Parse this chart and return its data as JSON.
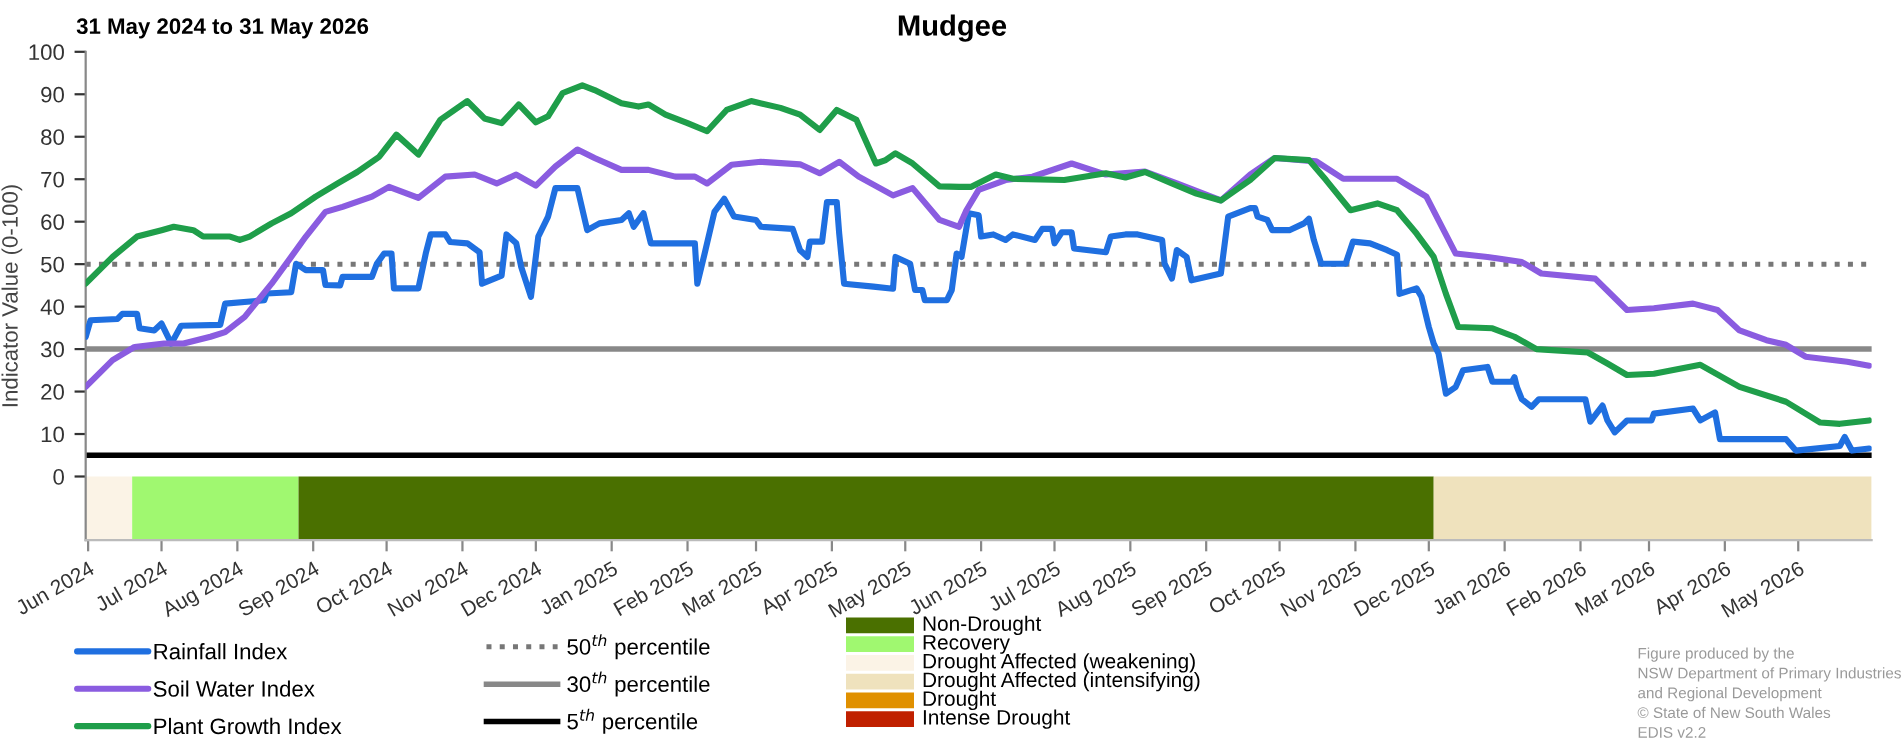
{
  "chart_data": [
    {
      "type": "line",
      "title": "Mudgee",
      "subtitle": "31 May 2024 to 31 May 2026",
      "ylabel": "Indicator Value (0-100)",
      "xlim": [
        "2024-05-31",
        "2026-05-31"
      ],
      "ylim": [
        -15,
        100
      ],
      "yticks": [
        0,
        10,
        20,
        30,
        40,
        50,
        60,
        70,
        80,
        90,
        100
      ],
      "grid": false,
      "legend": "bottom",
      "line_style": "solid",
      "marker": "none",
      "xticks": [
        {
          "value": "2024-06-01",
          "label": "Jun 2024"
        },
        {
          "value": "2024-07-01",
          "label": "Jul 2024"
        },
        {
          "value": "2024-08-01",
          "label": "Aug 2024"
        },
        {
          "value": "2024-09-01",
          "label": "Sep 2024"
        },
        {
          "value": "2024-10-01",
          "label": "Oct 2024"
        },
        {
          "value": "2024-11-01",
          "label": "Nov 2024"
        },
        {
          "value": "2024-12-01",
          "label": "Dec 2024"
        },
        {
          "value": "2025-01-01",
          "label": "Jan 2025"
        },
        {
          "value": "2025-02-01",
          "label": "Feb 2025"
        },
        {
          "value": "2025-03-01",
          "label": "Mar 2025"
        },
        {
          "value": "2025-04-01",
          "label": "Apr 2025"
        },
        {
          "value": "2025-05-01",
          "label": "May 2025"
        },
        {
          "value": "2025-06-01",
          "label": "Jun 2025"
        },
        {
          "value": "2025-07-01",
          "label": "Jul 2025"
        },
        {
          "value": "2025-08-01",
          "label": "Aug 2025"
        },
        {
          "value": "2025-09-01",
          "label": "Sep 2025"
        },
        {
          "value": "2025-10-01",
          "label": "Oct 2025"
        },
        {
          "value": "2025-11-01",
          "label": "Nov 2025"
        },
        {
          "value": "2025-12-01",
          "label": "Dec 2025"
        },
        {
          "value": "2026-01-01",
          "label": "Jan 2026"
        },
        {
          "value": "2026-02-01",
          "label": "Feb 2026"
        },
        {
          "value": "2026-03-01",
          "label": "Mar 2026"
        },
        {
          "value": "2026-04-01",
          "label": "Apr 2026"
        },
        {
          "value": "2026-05-01",
          "label": "May 2026"
        }
      ],
      "series": [
        {
          "name": "Rainfall Index",
          "color": "#1f6fe0",
          "x": [
            "2024-05-31",
            "2024-06-02",
            "2024-06-13",
            "2024-06-15",
            "2024-06-21",
            "2024-06-22",
            "2024-06-28",
            "2024-07-01",
            "2024-07-05",
            "2024-07-09",
            "2024-07-25",
            "2024-07-27",
            "2024-08-12",
            "2024-08-13",
            "2024-08-23",
            "2024-08-25",
            "2024-08-29",
            "2024-09-05",
            "2024-09-06",
            "2024-09-12",
            "2024-09-13",
            "2024-09-25",
            "2024-09-27",
            "2024-09-30",
            "2024-10-03",
            "2024-10-04",
            "2024-10-14",
            "2024-10-17",
            "2024-10-19",
            "2024-10-25",
            "2024-10-27",
            "2024-11-03",
            "2024-11-08",
            "2024-11-09",
            "2024-11-17",
            "2024-11-19",
            "2024-11-23",
            "2024-11-25",
            "2024-11-29",
            "2024-12-02",
            "2024-12-06",
            "2024-12-09",
            "2024-12-18",
            "2024-12-22",
            "2024-12-27",
            "2025-01-05",
            "2025-01-08",
            "2025-01-10",
            "2025-01-14",
            "2025-01-17",
            "2025-02-04",
            "2025-02-05",
            "2025-02-08",
            "2025-02-12",
            "2025-02-16",
            "2025-02-20",
            "2025-03-01",
            "2025-03-03",
            "2025-03-16",
            "2025-03-19",
            "2025-03-22",
            "2025-03-23",
            "2025-03-28",
            "2025-03-30",
            "2025-04-03",
            "2025-04-04",
            "2025-04-06",
            "2025-04-18",
            "2025-04-26",
            "2025-04-27",
            "2025-05-03",
            "2025-05-05",
            "2025-05-08",
            "2025-05-09",
            "2025-05-18",
            "2025-05-20",
            "2025-05-22",
            "2025-05-24",
            "2025-05-27",
            "2025-05-31",
            "2025-06-01",
            "2025-06-06",
            "2025-06-11",
            "2025-06-14",
            "2025-06-23",
            "2025-06-26",
            "2025-06-30",
            "2025-07-01",
            "2025-07-04",
            "2025-07-08",
            "2025-07-09",
            "2025-07-22",
            "2025-07-24",
            "2025-07-30",
            "2025-08-04",
            "2025-08-14",
            "2025-08-15",
            "2025-08-18",
            "2025-08-20",
            "2025-08-24",
            "2025-08-26",
            "2025-09-07",
            "2025-09-10",
            "2025-09-19",
            "2025-09-21",
            "2025-09-22",
            "2025-09-26",
            "2025-09-28",
            "2025-10-05",
            "2025-10-11",
            "2025-10-13",
            "2025-10-15",
            "2025-10-18",
            "2025-10-28",
            "2025-10-31",
            "2025-11-07",
            "2025-11-14",
            "2025-11-18",
            "2025-11-19",
            "2025-11-26",
            "2025-11-28",
            "2025-12-01",
            "2025-12-03",
            "2025-12-05",
            "2025-12-08",
            "2025-12-12",
            "2025-12-15",
            "2025-12-25",
            "2025-12-27",
            "2026-01-04",
            "2026-01-05",
            "2026-01-06",
            "2026-01-08",
            "2026-01-12",
            "2026-01-15",
            "2026-02-03",
            "2026-02-05",
            "2026-02-10",
            "2026-02-12",
            "2026-02-15",
            "2026-02-20",
            "2026-03-02",
            "2026-03-03",
            "2026-03-19",
            "2026-03-22",
            "2026-03-28",
            "2026-03-30",
            "2026-04-26",
            "2026-04-30",
            "2026-05-18",
            "2026-05-20",
            "2026-05-23",
            "2026-05-30"
          ],
          "values": [
            32.9,
            36.8,
            37.1,
            38.3,
            38.3,
            34.9,
            34.4,
            36,
            31.3,
            35.5,
            35.7,
            40.7,
            41.5,
            43.1,
            43.4,
            50.1,
            48.6,
            48.6,
            45.1,
            45,
            47,
            47,
            50.1,
            52.5,
            52.5,
            44.3,
            44.3,
            52.5,
            57,
            57,
            55.2,
            54.9,
            52.8,
            45.4,
            47.3,
            57,
            54.9,
            49.4,
            42.3,
            56.5,
            61.2,
            67.9,
            67.9,
            58,
            59.6,
            60.4,
            62,
            58.8,
            62,
            54.9,
            54.9,
            45.4,
            52.5,
            62.3,
            65.4,
            61.2,
            60.4,
            58.8,
            58.3,
            53.3,
            51.7,
            55.3,
            55.3,
            64.6,
            64.6,
            57.2,
            45.4,
            44.7,
            44.2,
            51.7,
            50.1,
            43.9,
            43.9,
            41.5,
            41.5,
            43.9,
            52.5,
            51.7,
            62,
            61.5,
            56.5,
            57,
            55.7,
            57,
            55.7,
            58.3,
            58.3,
            54.9,
            57.5,
            57.5,
            53.7,
            52.8,
            56.5,
            57,
            57,
            55.7,
            50.1,
            46.6,
            53.3,
            51.7,
            46.2,
            47.8,
            61.2,
            63.2,
            63.2,
            61.2,
            60.4,
            58,
            58,
            59.6,
            60.7,
            55.7,
            50.1,
            50.1,
            55.3,
            54.9,
            53.3,
            52.2,
            43,
            44.3,
            42.3,
            35.2,
            31.3,
            28.9,
            19.5,
            21.1,
            25,
            25.8,
            22.3,
            22.3,
            23.4,
            21.1,
            18.2,
            16.4,
            18.2,
            18.2,
            12.9,
            16.7,
            13.2,
            10.4,
            13.2,
            13.2,
            14.8,
            16,
            13.2,
            15.1,
            8.8,
            8.8,
            6.1,
            7.2,
            9.3,
            6.1,
            6.6
          ]
        },
        {
          "name": "Soil Water Index",
          "color": "#8a5ce0",
          "x": [
            "2024-05-31",
            "2024-06-11",
            "2024-06-20",
            "2024-07-02",
            "2024-07-10",
            "2024-07-21",
            "2024-07-27",
            "2024-08-04",
            "2024-08-15",
            "2024-08-23",
            "2024-08-29",
            "2024-09-06",
            "2024-09-13",
            "2024-09-25",
            "2024-10-02",
            "2024-10-14",
            "2024-10-25",
            "2024-11-06",
            "2024-11-15",
            "2024-11-23",
            "2024-12-01",
            "2024-12-09",
            "2024-12-18",
            "2024-12-25",
            "2025-01-05",
            "2025-01-16",
            "2025-01-27",
            "2025-02-04",
            "2025-02-09",
            "2025-02-19",
            "2025-03-03",
            "2025-03-19",
            "2025-03-27",
            "2025-04-04",
            "2025-04-12",
            "2025-04-26",
            "2025-05-04",
            "2025-05-15",
            "2025-05-23",
            "2025-05-26",
            "2025-05-31",
            "2025-06-11",
            "2025-06-22",
            "2025-07-08",
            "2025-07-22",
            "2025-08-07",
            "2025-08-20",
            "2025-09-07",
            "2025-09-19",
            "2025-09-29",
            "2025-10-16",
            "2025-10-27",
            "2025-11-18",
            "2025-11-30",
            "2025-12-12",
            "2025-12-25",
            "2026-01-08",
            "2026-01-16",
            "2026-02-07",
            "2026-02-20",
            "2026-03-03",
            "2026-03-19",
            "2026-03-29",
            "2026-04-07",
            "2026-04-18",
            "2026-04-26",
            "2026-05-04",
            "2026-05-21",
            "2026-05-30"
          ],
          "values": [
            21.1,
            27.4,
            30.5,
            31.3,
            31.3,
            32.9,
            34,
            37.6,
            45.4,
            51.7,
            56.5,
            62.3,
            63.5,
            65.9,
            68.2,
            65.6,
            70.6,
            71.1,
            69,
            71.1,
            68.5,
            73,
            77,
            75,
            72.2,
            72.2,
            70.6,
            70.6,
            69,
            73.4,
            74.1,
            73.5,
            71.4,
            74.1,
            70.6,
            66.2,
            67.9,
            60.4,
            58.8,
            62.7,
            67.5,
            69.8,
            70.6,
            73.7,
            71.1,
            71.8,
            69,
            65,
            71.1,
            75,
            74.2,
            70.1,
            70.1,
            65.9,
            52.5,
            51.7,
            50.5,
            47.8,
            46.6,
            39.2,
            39.6,
            40.7,
            39.2,
            34.4,
            32.1,
            31,
            28.2,
            27,
            26.1
          ]
        },
        {
          "name": "Plant Growth Index",
          "color": "#1f9e4a",
          "x": [
            "2024-05-31",
            "2024-06-11",
            "2024-06-21",
            "2024-07-01",
            "2024-07-06",
            "2024-07-14",
            "2024-07-18",
            "2024-07-29",
            "2024-08-02",
            "2024-08-06",
            "2024-08-15",
            "2024-08-23",
            "2024-09-02",
            "2024-09-11",
            "2024-09-19",
            "2024-09-28",
            "2024-10-05",
            "2024-10-14",
            "2024-10-23",
            "2024-11-03",
            "2024-11-10",
            "2024-11-17",
            "2024-11-24",
            "2024-12-01",
            "2024-12-06",
            "2024-12-12",
            "2024-12-20",
            "2024-12-25",
            "2025-01-05",
            "2025-01-12",
            "2025-01-16",
            "2025-01-23",
            "2025-02-01",
            "2025-02-09",
            "2025-02-17",
            "2025-02-27",
            "2025-03-11",
            "2025-03-19",
            "2025-03-27",
            "2025-04-03",
            "2025-04-11",
            "2025-04-19",
            "2025-04-23",
            "2025-04-27",
            "2025-05-04",
            "2025-05-15",
            "2025-05-23",
            "2025-05-28",
            "2025-06-07",
            "2025-06-14",
            "2025-07-05",
            "2025-07-22",
            "2025-07-30",
            "2025-08-07",
            "2025-08-18",
            "2025-08-28",
            "2025-09-07",
            "2025-09-19",
            "2025-09-29",
            "2025-10-13",
            "2025-10-20",
            "2025-10-30",
            "2025-11-10",
            "2025-11-18",
            "2025-11-26",
            "2025-12-03",
            "2025-12-08",
            "2025-12-13",
            "2025-12-27",
            "2026-01-05",
            "2026-01-14",
            "2026-02-04",
            "2026-02-12",
            "2026-02-20",
            "2026-03-03",
            "2026-03-22",
            "2026-04-07",
            "2026-04-26",
            "2026-05-10",
            "2026-05-18",
            "2026-05-30"
          ],
          "values": [
            45.4,
            51.7,
            56.5,
            58,
            58.8,
            58,
            56.5,
            56.5,
            55.7,
            56.5,
            59.6,
            62,
            65.9,
            69,
            71.7,
            75.3,
            80.5,
            75.8,
            84,
            88.4,
            84.3,
            83.2,
            87.6,
            83.4,
            84.8,
            90.3,
            92.1,
            91,
            87.9,
            87.1,
            87.6,
            85.2,
            83.2,
            81.3,
            86.3,
            88.4,
            86.8,
            85.2,
            81.6,
            86.3,
            84,
            73.7,
            74.5,
            76.1,
            73.7,
            68.3,
            68.2,
            68.2,
            71.1,
            70.1,
            69.8,
            71.4,
            70.4,
            71.7,
            69,
            66.6,
            65,
            69.8,
            75,
            74.5,
            69.8,
            62.7,
            64.3,
            62.7,
            57.2,
            51.7,
            43,
            35.2,
            34.9,
            32.9,
            30,
            29.2,
            26.6,
            23.9,
            24.2,
            26.3,
            21.1,
            17.6,
            12.7,
            12.4,
            13.2
          ]
        }
      ],
      "ref_lines": [
        {
          "axis": "y",
          "value": 50,
          "label": "50$^{th}$ percentile",
          "color": "#777777",
          "line_style": "dotted"
        },
        {
          "axis": "y",
          "value": 30,
          "label": "30$^{th}$ percentile",
          "color": "#888888",
          "line_style": "solid"
        },
        {
          "axis": "y",
          "value": 5,
          "label": "5$^{th}$ percentile",
          "color": "#000000",
          "line_style": "solid"
        }
      ],
      "bands": [
        {
          "axis": "x",
          "from": "2024-05-31",
          "to": "2024-06-19",
          "color": "#fbf3e6"
        },
        {
          "axis": "x",
          "from": "2024-06-19",
          "to": "2024-08-26",
          "color": "#a0f870"
        },
        {
          "axis": "x",
          "from": "2024-08-26",
          "to": "2025-12-03",
          "color": "#4a7000"
        },
        {
          "axis": "x",
          "from": "2025-12-03",
          "to": "2026-05-31",
          "color": "#efe2bd"
        }
      ],
      "annotations": [
        "Figure produced by the\nNSW Department of Primary Industries\nand Regional Development\n© State of New South Wales\nEDIS v2.2"
      ]
    },
    {
      "type": "other",
      "categories": [
        "Non-Drought",
        "Recovery",
        "Drought Affected (weakening)",
        "Drought Affected (intensifying)",
        "Drought",
        "Intense Drought"
      ],
      "colors": [
        "#4a7000",
        "#a0f870",
        "#fbf3e6",
        "#efe2bd",
        "#e09000",
        "#c02000"
      ]
    }
  ]
}
